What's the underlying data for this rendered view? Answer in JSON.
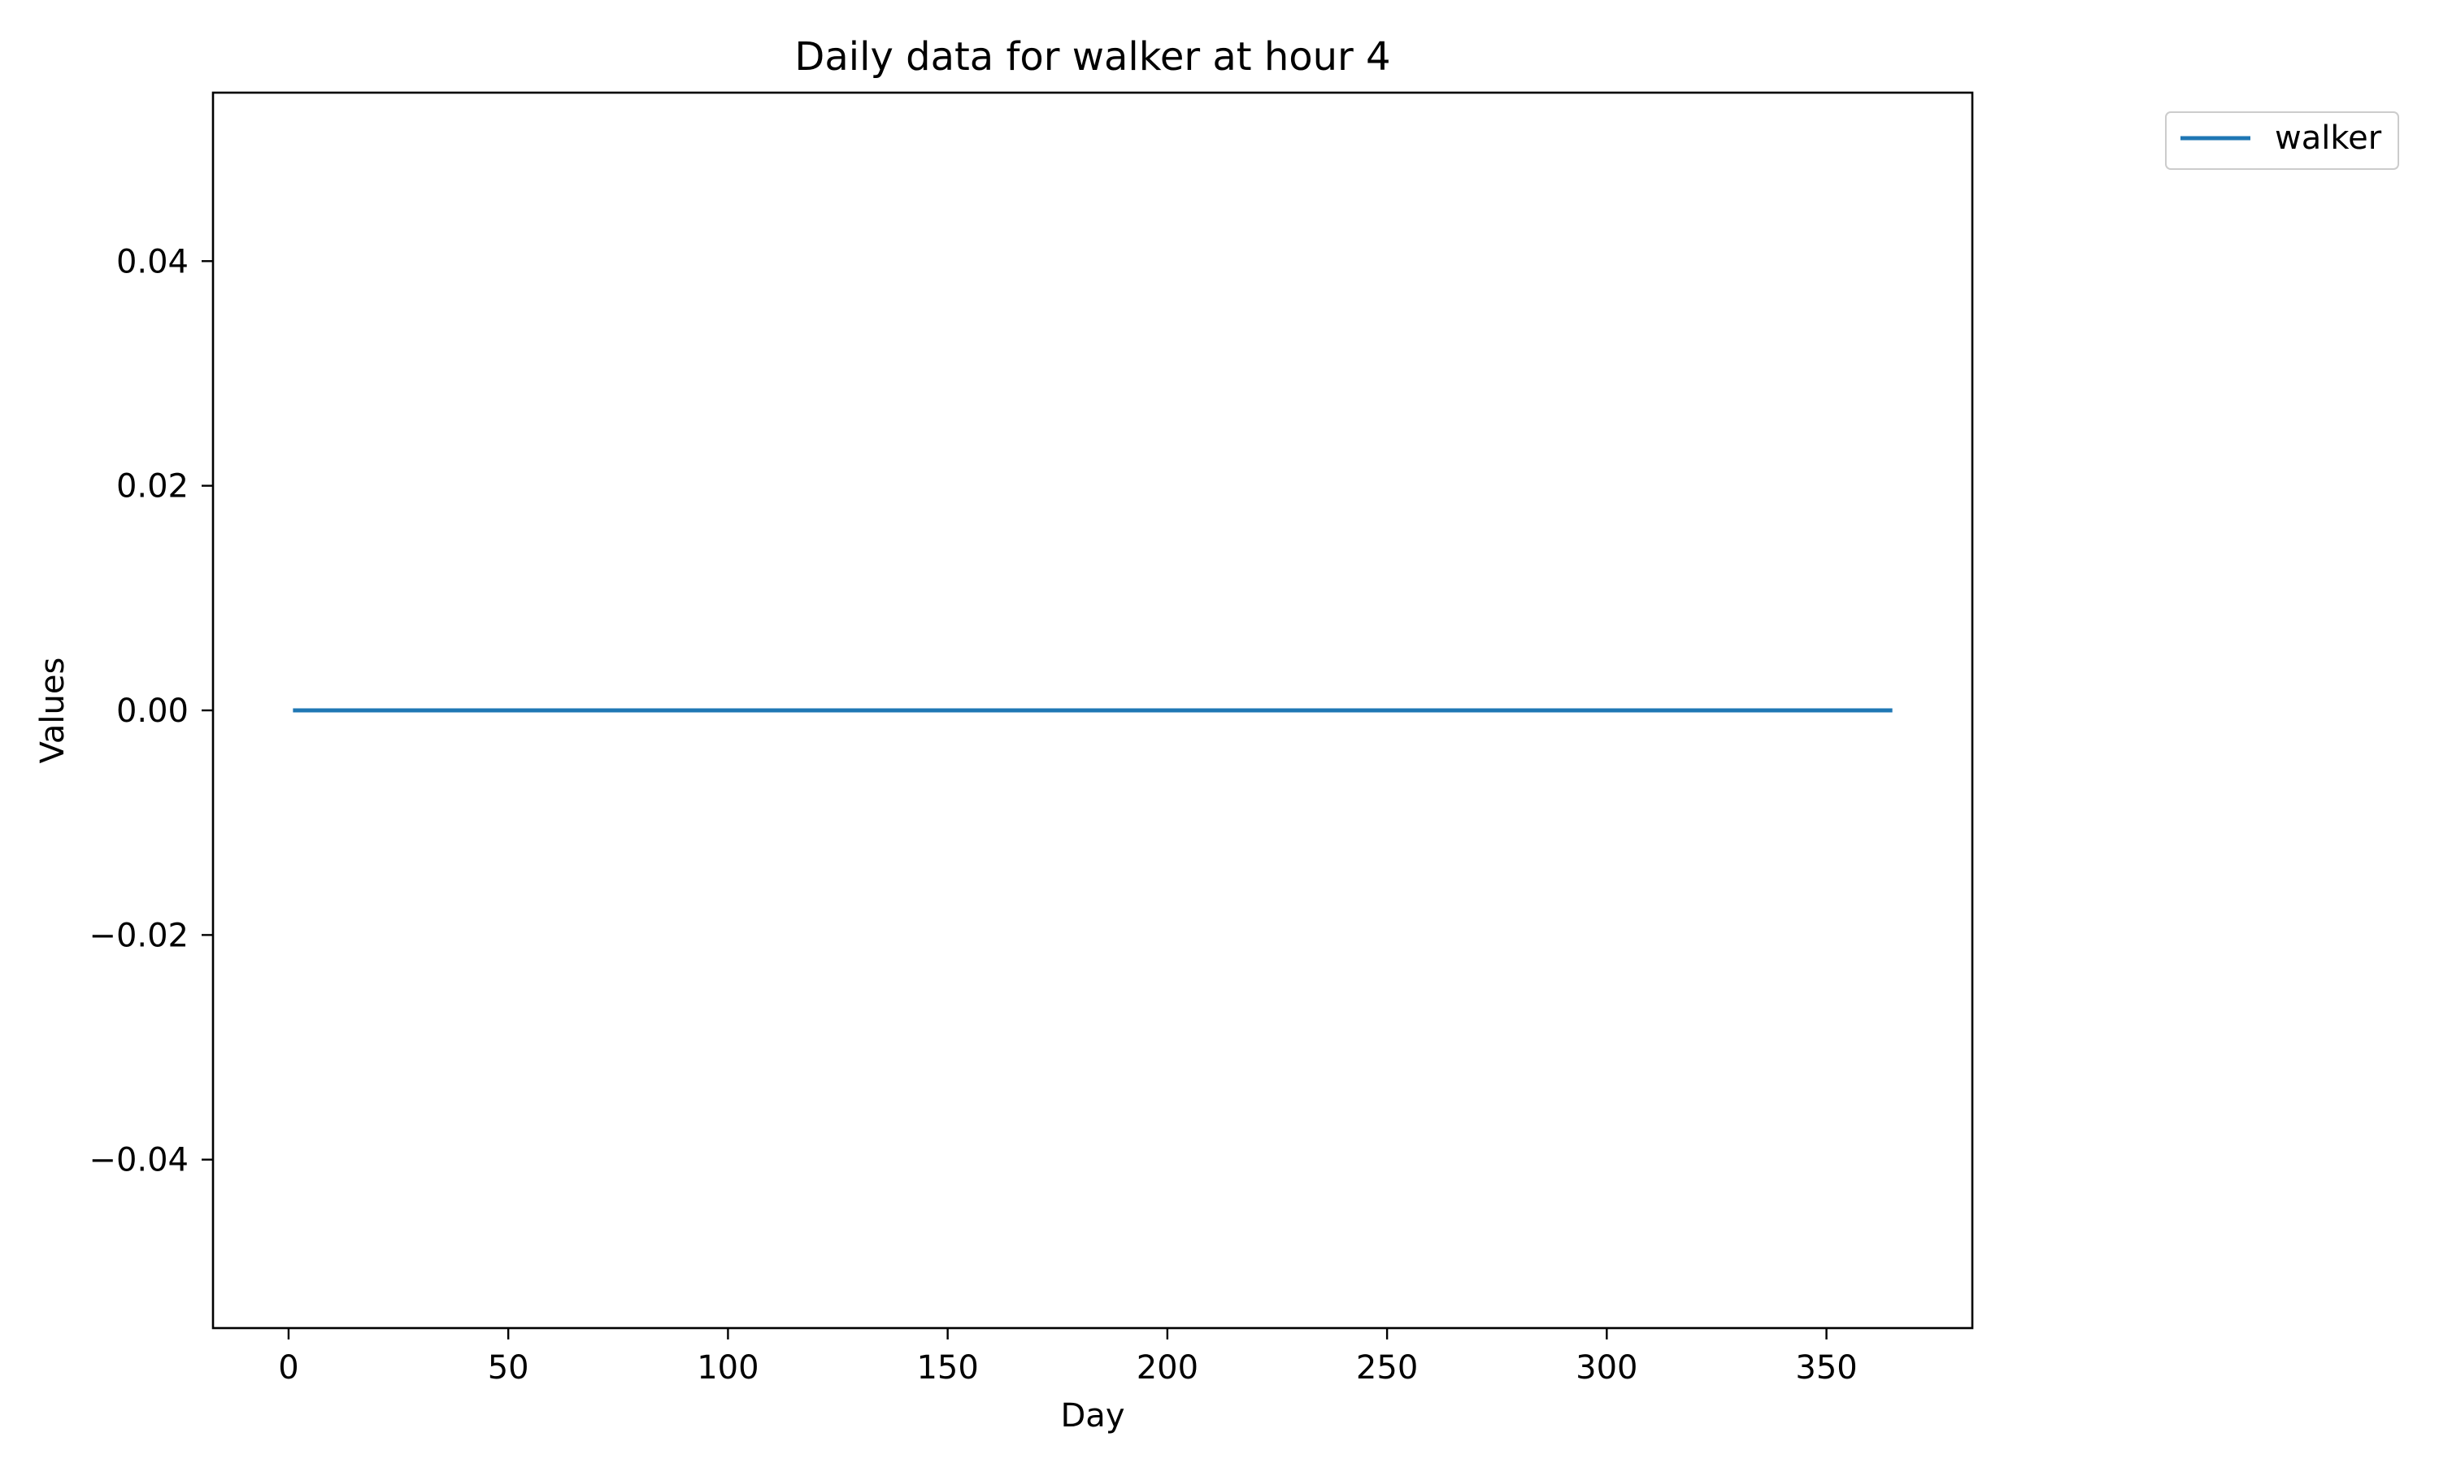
{
  "chart_data": {
    "type": "line",
    "title": "Daily data for walker at hour 4",
    "xlabel": "Day",
    "ylabel": "Values",
    "xlim": [
      -17.2,
      383.2
    ],
    "ylim": [
      -0.055,
      0.055
    ],
    "xticks": [
      0,
      50,
      100,
      150,
      200,
      250,
      300,
      350
    ],
    "xtick_labels": [
      "0",
      "50",
      "100",
      "150",
      "200",
      "250",
      "300",
      "350"
    ],
    "yticks": [
      0.04,
      0.02,
      0.0,
      -0.02,
      -0.04
    ],
    "ytick_labels": [
      "0.04",
      "0.02",
      "0.00",
      "−0.02",
      "−0.04"
    ],
    "grid": false,
    "legend": {
      "placement": "outside-top-right",
      "entries": [
        "walker"
      ]
    },
    "series": [
      {
        "name": "walker",
        "color": "#1f77b4",
        "x": [
          1,
          365
        ],
        "y": [
          0,
          0
        ]
      }
    ]
  }
}
